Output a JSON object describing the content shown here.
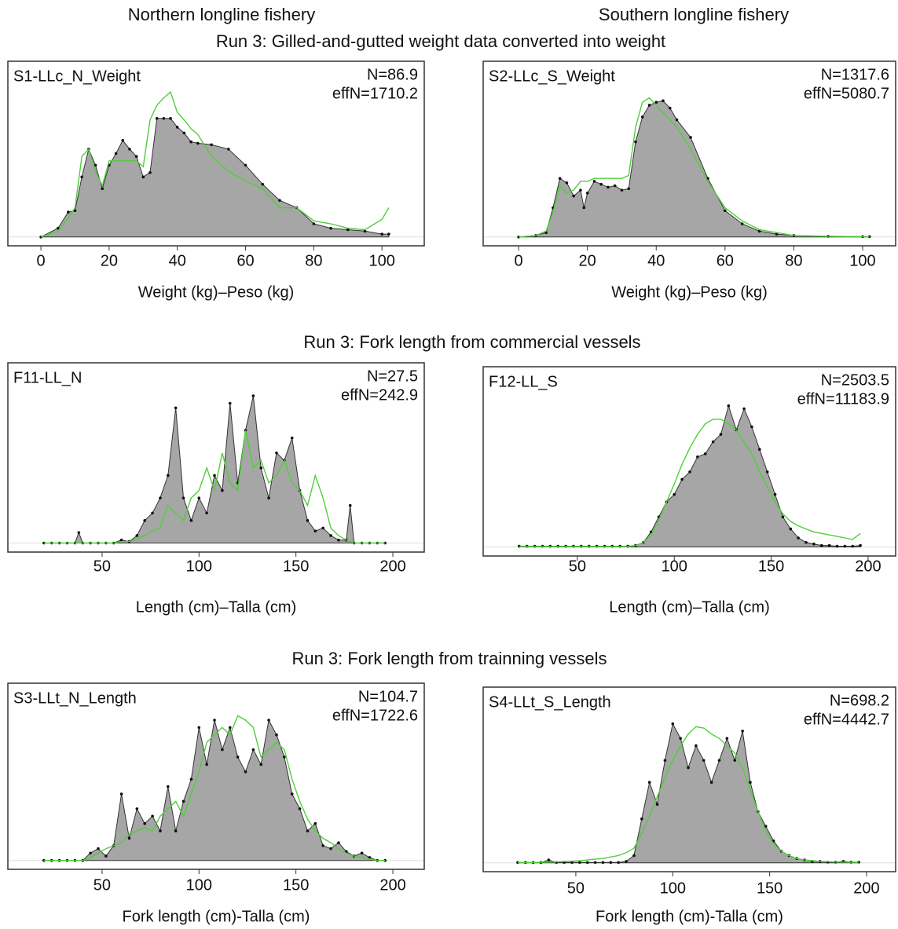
{
  "figure": {
    "column_titles": [
      "Northern longline fishery",
      "Southern longline fishery"
    ],
    "row_titles": [
      "Run 3: Gilled-and-gutted weight data converted into weight",
      "Run 3: Fork length from commercial vessels",
      "Run 3: Fork length from trainning vessels"
    ]
  },
  "chart_data": [
    {
      "type": "area",
      "annotations": [
        "S1-LLc_N_Weight",
        "N=86.9",
        "effN=1710.2"
      ],
      "xlabel": "Weight (kg)–Peso (kg)",
      "xlim": [
        -9.7,
        112.4
      ],
      "xticks": [
        0,
        20,
        40,
        60,
        80,
        100
      ],
      "ylim": [
        -0.06,
        1.2
      ],
      "x": [
        0,
        5,
        8,
        10,
        12,
        14,
        16,
        18,
        20,
        22,
        24,
        26,
        28,
        30,
        32,
        34,
        36,
        38,
        40,
        42,
        44,
        46,
        50,
        55,
        60,
        65,
        70,
        75,
        80,
        85,
        90,
        95,
        100,
        102
      ],
      "series": [
        {
          "style": "area",
          "color": "#a6a6a6",
          "values": [
            0,
            0.06,
            0.17,
            0.18,
            0.41,
            0.6,
            0.49,
            0.33,
            0.49,
            0.57,
            0.66,
            0.6,
            0.55,
            0.41,
            0.44,
            0.81,
            0.81,
            0.81,
            0.75,
            0.71,
            0.65,
            0.64,
            0.63,
            0.6,
            0.49,
            0.36,
            0.25,
            0.2,
            0.09,
            0.06,
            0.05,
            0.04,
            0.02,
            0.02
          ]
        },
        {
          "style": "line",
          "color": "#4fcf3a",
          "values": [
            0,
            0.04,
            0.13,
            0.2,
            0.55,
            0.6,
            0.45,
            0.35,
            0.52,
            0.52,
            0.52,
            0.52,
            0.52,
            0.48,
            0.8,
            0.9,
            0.95,
            0.99,
            0.85,
            0.8,
            0.74,
            0.7,
            0.55,
            0.45,
            0.38,
            0.33,
            0.2,
            0.2,
            0.11,
            0.09,
            0.06,
            0.05,
            0.12,
            0.2
          ]
        }
      ]
    },
    {
      "type": "area",
      "annotations": [
        "S2-LLc_S_Weight",
        "N=1317.6",
        "effN=5080.7"
      ],
      "xlabel": "Weight (kg)–Peso (kg)",
      "xlim": [
        -10.3,
        109.6
      ],
      "xticks": [
        0,
        20,
        40,
        60,
        80,
        100
      ],
      "ylim": [
        -0.06,
        1.2
      ],
      "x": [
        0,
        5,
        8,
        10,
        12,
        14,
        16,
        18,
        19,
        20,
        22,
        24,
        26,
        28,
        30,
        32,
        34,
        36,
        38,
        40,
        42,
        44,
        46,
        50,
        55,
        60,
        65,
        70,
        75,
        80,
        90,
        100,
        102
      ],
      "series": [
        {
          "style": "area",
          "color": "#a6a6a6",
          "values": [
            0,
            0.01,
            0.03,
            0.2,
            0.4,
            0.37,
            0.28,
            0.32,
            0.2,
            0.3,
            0.38,
            0.36,
            0.34,
            0.35,
            0.32,
            0.33,
            0.65,
            0.82,
            0.9,
            0.92,
            0.93,
            0.88,
            0.8,
            0.68,
            0.4,
            0.18,
            0.09,
            0.04,
            0.02,
            0.01,
            0.005,
            0.003,
            0.003
          ]
        },
        {
          "style": "line",
          "color": "#4fcf3a",
          "values": [
            0,
            0.01,
            0.04,
            0.17,
            0.35,
            0.3,
            0.32,
            0.38,
            0.38,
            0.38,
            0.4,
            0.4,
            0.4,
            0.4,
            0.4,
            0.42,
            0.75,
            0.92,
            0.95,
            0.9,
            0.85,
            0.8,
            0.75,
            0.6,
            0.38,
            0.2,
            0.11,
            0.05,
            0.03,
            0.01,
            0.005,
            0.003,
            0.003
          ]
        }
      ]
    },
    {
      "type": "area",
      "annotations": [
        "F11-LL_N",
        "N=27.5",
        "effN=242.9"
      ],
      "xlabel": "Length (cm)–Talla (cm)",
      "xlim": [
        1.4,
        216.2
      ],
      "xticks": [
        50,
        100,
        150,
        200
      ],
      "ylim": [
        -0.06,
        1.2
      ],
      "x": [
        20,
        24,
        28,
        32,
        36,
        38,
        40,
        44,
        48,
        52,
        56,
        60,
        64,
        68,
        72,
        76,
        80,
        84,
        88,
        92,
        96,
        100,
        104,
        108,
        112,
        116,
        120,
        124,
        128,
        132,
        136,
        140,
        144,
        148,
        152,
        156,
        160,
        164,
        168,
        172,
        176,
        178,
        180,
        184,
        188,
        192,
        196
      ],
      "series": [
        {
          "style": "area",
          "color": "#a6a6a6",
          "values": [
            0,
            0,
            0,
            0,
            0,
            0.07,
            0,
            0,
            0,
            0,
            0,
            0.02,
            0.01,
            0.05,
            0.15,
            0.2,
            0.3,
            0.45,
            0.9,
            0.3,
            0.15,
            0.3,
            0.2,
            0.45,
            0.35,
            0.93,
            0.4,
            0.75,
            0.98,
            0.5,
            0.3,
            0.6,
            0.55,
            0.7,
            0.35,
            0.15,
            0.08,
            0.1,
            0.05,
            0.02,
            0.02,
            0.25,
            0,
            0,
            0,
            0,
            0
          ]
        },
        {
          "style": "line",
          "color": "#4fcf3a",
          "values": [
            0,
            0,
            0,
            0,
            0,
            0,
            0,
            0,
            0,
            0,
            0,
            0.01,
            0.01,
            0.03,
            0.05,
            0.08,
            0.1,
            0.25,
            0.2,
            0.15,
            0.3,
            0.35,
            0.5,
            0.35,
            0.6,
            0.4,
            0.35,
            0.75,
            0.5,
            0.55,
            0.4,
            0.45,
            0.55,
            0.4,
            0.35,
            0.25,
            0.45,
            0.3,
            0.1,
            0.05,
            0.02,
            0.01,
            0,
            0,
            0,
            0,
            0
          ]
        }
      ]
    },
    {
      "type": "area",
      "annotations": [
        "F12-LL_S",
        "N=2503.5",
        "effN=11183.9"
      ],
      "xlabel": "Length (cm)–Talla (cm)",
      "xlim": [
        1.4,
        214.2
      ],
      "xticks": [
        50,
        100,
        150,
        200
      ],
      "ylim": [
        -0.06,
        1.2
      ],
      "x": [
        20,
        24,
        28,
        32,
        36,
        40,
        44,
        48,
        52,
        56,
        60,
        64,
        68,
        72,
        76,
        80,
        84,
        88,
        92,
        96,
        100,
        104,
        108,
        112,
        116,
        120,
        124,
        128,
        132,
        136,
        140,
        144,
        148,
        152,
        156,
        160,
        164,
        168,
        172,
        176,
        180,
        184,
        188,
        192,
        196
      ],
      "series": [
        {
          "style": "area",
          "color": "#a6a6a6",
          "values": [
            0.005,
            0.005,
            0.005,
            0.005,
            0.005,
            0.005,
            0.005,
            0.005,
            0.005,
            0.005,
            0.005,
            0.005,
            0.005,
            0.005,
            0.005,
            0.01,
            0.03,
            0.1,
            0.2,
            0.3,
            0.35,
            0.45,
            0.5,
            0.6,
            0.62,
            0.7,
            0.75,
            0.94,
            0.78,
            0.92,
            0.8,
            0.65,
            0.5,
            0.35,
            0.2,
            0.12,
            0.06,
            0.03,
            0.02,
            0.01,
            0.01,
            0.005,
            0.005,
            0.005,
            0.01
          ]
        },
        {
          "style": "line",
          "color": "#4fcf3a",
          "values": [
            0.003,
            0.003,
            0.003,
            0.003,
            0.003,
            0.003,
            0.003,
            0.003,
            0.003,
            0.003,
            0.003,
            0.003,
            0.003,
            0.003,
            0.003,
            0.01,
            0.03,
            0.08,
            0.18,
            0.3,
            0.42,
            0.55,
            0.66,
            0.75,
            0.82,
            0.85,
            0.85,
            0.82,
            0.78,
            0.7,
            0.62,
            0.5,
            0.4,
            0.3,
            0.22,
            0.17,
            0.14,
            0.12,
            0.1,
            0.09,
            0.08,
            0.07,
            0.06,
            0.05,
            0.09
          ]
        }
      ]
    },
    {
      "type": "area",
      "annotations": [
        "S3-LLt_N_Length",
        "N=104.7",
        "effN=1722.6"
      ],
      "xlabel": "Fork length (cm)-Talla (cm)",
      "xlim": [
        1.4,
        216.2
      ],
      "xticks": [
        50,
        100,
        150,
        200
      ],
      "ylim": [
        -0.06,
        1.2
      ],
      "x": [
        20,
        24,
        28,
        32,
        36,
        40,
        44,
        48,
        52,
        56,
        60,
        64,
        68,
        72,
        76,
        80,
        84,
        88,
        92,
        96,
        100,
        104,
        108,
        112,
        116,
        120,
        124,
        128,
        132,
        136,
        140,
        144,
        148,
        152,
        156,
        160,
        164,
        168,
        172,
        176,
        180,
        184,
        188,
        192,
        196
      ],
      "series": [
        {
          "style": "area",
          "color": "#a6a6a6",
          "values": [
            0,
            0,
            0,
            0,
            0,
            0,
            0.05,
            0.08,
            0.03,
            0.1,
            0.45,
            0.15,
            0.35,
            0.25,
            0.3,
            0.2,
            0.5,
            0.2,
            0.4,
            0.55,
            0.9,
            0.65,
            0.95,
            0.75,
            0.9,
            0.7,
            0.6,
            0.75,
            0.65,
            0.95,
            0.85,
            0.7,
            0.45,
            0.35,
            0.2,
            0.25,
            0.1,
            0.08,
            0.12,
            0.06,
            0.03,
            0.05,
            0.02,
            0,
            0
          ]
        },
        {
          "style": "line",
          "color": "#4fcf3a",
          "values": [
            0,
            0,
            0,
            0,
            0,
            0,
            0.02,
            0.05,
            0.08,
            0.1,
            0.12,
            0.18,
            0.2,
            0.22,
            0.2,
            0.3,
            0.35,
            0.4,
            0.3,
            0.45,
            0.6,
            0.8,
            0.85,
            0.9,
            0.85,
            0.98,
            0.95,
            0.9,
            0.7,
            0.75,
            0.8,
            0.75,
            0.55,
            0.4,
            0.28,
            0.2,
            0.15,
            0.12,
            0.08,
            0.05,
            0.03,
            0.02,
            0.01,
            0,
            0
          ]
        }
      ]
    },
    {
      "type": "area",
      "annotations": [
        "S4-LLt_S_Length",
        "N=698.2",
        "effN=4442.7"
      ],
      "xlabel": "Fork length (cm)-Talla (cm)",
      "xlim": [
        2.2,
        215
      ],
      "xticks": [
        50,
        100,
        150,
        200
      ],
      "ylim": [
        -0.06,
        1.2
      ],
      "x": [
        20,
        24,
        28,
        32,
        36,
        40,
        44,
        48,
        52,
        56,
        60,
        64,
        68,
        72,
        76,
        80,
        84,
        88,
        92,
        96,
        100,
        104,
        108,
        112,
        116,
        120,
        124,
        128,
        132,
        136,
        140,
        144,
        148,
        152,
        156,
        160,
        164,
        168,
        172,
        176,
        180,
        184,
        188,
        192,
        196
      ],
      "series": [
        {
          "style": "area",
          "color": "#a6a6a6",
          "values": [
            0.003,
            0.003,
            0.003,
            0.003,
            0.02,
            0.003,
            0.003,
            0.003,
            0.003,
            0.003,
            0.003,
            0.003,
            0.003,
            0.003,
            0.01,
            0.05,
            0.3,
            0.55,
            0.4,
            0.7,
            0.95,
            0.85,
            0.65,
            0.8,
            0.7,
            0.55,
            0.7,
            0.85,
            0.7,
            0.9,
            0.55,
            0.35,
            0.25,
            0.15,
            0.08,
            0.05,
            0.03,
            0.02,
            0.01,
            0.01,
            0.005,
            0.005,
            0.01,
            0.005,
            0.005
          ]
        },
        {
          "style": "line",
          "color": "#4fcf3a",
          "values": [
            0.002,
            0.002,
            0.003,
            0.004,
            0.005,
            0.007,
            0.01,
            0.012,
            0.015,
            0.02,
            0.025,
            0.03,
            0.04,
            0.05,
            0.07,
            0.1,
            0.2,
            0.32,
            0.45,
            0.58,
            0.7,
            0.8,
            0.88,
            0.93,
            0.92,
            0.88,
            0.85,
            0.8,
            0.75,
            0.65,
            0.5,
            0.35,
            0.22,
            0.13,
            0.08,
            0.05,
            0.03,
            0.02,
            0.015,
            0.01,
            0.008,
            0.006,
            0.005,
            0.004,
            0.004
          ]
        }
      ]
    }
  ]
}
